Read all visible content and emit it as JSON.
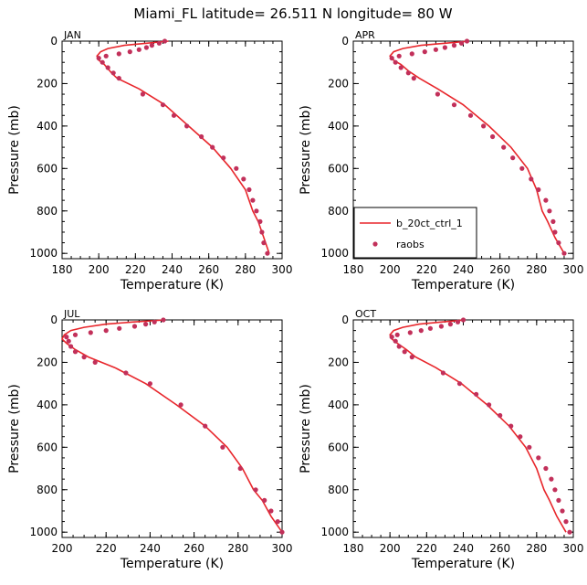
{
  "figure": {
    "title": "Miami_FL  latitude= 26.511 N longitude= 80 W"
  },
  "colors": {
    "model_line": "#e8262b",
    "obs_points": "#c2305a"
  },
  "chart_data": [
    {
      "type": "line",
      "panel": "JAN",
      "xlabel": "Temperature (K)",
      "ylabel": "Pressure (mb)",
      "xlim": [
        180,
        300
      ],
      "ylim": [
        0,
        1025
      ],
      "y_inverted": true,
      "x_ticks": [
        "180",
        "200",
        "220",
        "240",
        "260",
        "280",
        "300"
      ],
      "y_ticks": [
        "0",
        "200",
        "400",
        "600",
        "800",
        "1000"
      ],
      "legend": null,
      "series": [
        {
          "kind": "line",
          "x": [
            238,
            226,
            214,
            205,
            201,
            199,
            200,
            203,
            207,
            210,
            222,
            236,
            249,
            262,
            272,
            280,
            284,
            287,
            290,
            293
          ],
          "y": [
            0,
            10,
            20,
            35,
            50,
            70,
            90,
            110,
            150,
            175,
            225,
            300,
            400,
            500,
            600,
            700,
            800,
            850,
            925,
            1000
          ]
        },
        {
          "kind": "points",
          "x": [
            236,
            233,
            229,
            226,
            222,
            217,
            211,
            204,
            200,
            202,
            205,
            208,
            211,
            224,
            235,
            241,
            248,
            256,
            262,
            268,
            275,
            279,
            282,
            284,
            286,
            288,
            289,
            290,
            292
          ],
          "y": [
            0,
            10,
            20,
            30,
            40,
            50,
            60,
            70,
            80,
            100,
            125,
            150,
            175,
            250,
            300,
            350,
            400,
            450,
            500,
            550,
            600,
            650,
            700,
            750,
            800,
            850,
            900,
            950,
            1000
          ]
        }
      ]
    },
    {
      "type": "line",
      "panel": "APR",
      "xlabel": "Temperature (K)",
      "ylabel": "Pressure (mb)",
      "xlim": [
        180,
        300
      ],
      "ylim": [
        0,
        1025
      ],
      "y_inverted": true,
      "x_ticks": [
        "180",
        "200",
        "220",
        "240",
        "260",
        "280",
        "300"
      ],
      "y_ticks": [
        "0",
        "200",
        "400",
        "600",
        "800",
        "1000"
      ],
      "legend": {
        "placement": "bottom-left",
        "entries": [
          "b_20ct_ctrl_1",
          "raobs"
        ]
      },
      "series": [
        {
          "name": "b_20ct_ctrl_1",
          "kind": "line",
          "x": [
            243,
            230,
            217,
            207,
            202,
            200,
            202,
            206,
            210,
            216,
            226,
            240,
            254,
            266,
            275,
            280,
            283,
            286,
            290,
            295
          ],
          "y": [
            0,
            10,
            20,
            35,
            50,
            70,
            90,
            110,
            140,
            175,
            225,
            300,
            400,
            500,
            600,
            700,
            800,
            850,
            925,
            1000
          ]
        },
        {
          "name": "raobs",
          "kind": "points",
          "x": [
            242,
            239,
            235,
            230,
            225,
            219,
            212,
            205,
            201,
            203,
            206,
            210,
            213,
            226,
            235,
            244,
            251,
            256,
            262,
            267,
            272,
            277,
            281,
            285,
            287,
            289,
            290,
            292,
            295
          ],
          "y": [
            0,
            10,
            20,
            30,
            40,
            50,
            60,
            70,
            80,
            100,
            125,
            150,
            175,
            250,
            300,
            350,
            400,
            450,
            500,
            550,
            600,
            650,
            700,
            750,
            800,
            850,
            900,
            950,
            1000
          ]
        }
      ]
    },
    {
      "type": "line",
      "panel": "JUL",
      "xlabel": "Temperature (K)",
      "ylabel": "Pressure (mb)",
      "xlim": [
        200,
        300
      ],
      "ylim": [
        0,
        1025
      ],
      "y_inverted": true,
      "x_ticks": [
        "200",
        "220",
        "240",
        "260",
        "280",
        "300"
      ],
      "y_ticks": [
        "0",
        "200",
        "400",
        "600",
        "800",
        "1000"
      ],
      "legend": null,
      "series": [
        {
          "kind": "line",
          "x": [
            247,
            232,
            220,
            210,
            204,
            201,
            200,
            202,
            206,
            212,
            224,
            238,
            252,
            265,
            275,
            282,
            287,
            291,
            295,
            300
          ],
          "y": [
            0,
            10,
            20,
            35,
            50,
            70,
            90,
            110,
            140,
            175,
            225,
            300,
            400,
            500,
            600,
            700,
            800,
            850,
            925,
            1000
          ]
        },
        {
          "kind": "points",
          "x": [
            246,
            242,
            238,
            233,
            226,
            220,
            213,
            206,
            202,
            203,
            204,
            206,
            210,
            215,
            229,
            240,
            254,
            265,
            273,
            281,
            288,
            292,
            295,
            298,
            300
          ],
          "y": [
            0,
            10,
            20,
            30,
            40,
            50,
            60,
            70,
            80,
            100,
            125,
            150,
            175,
            200,
            250,
            300,
            400,
            500,
            600,
            700,
            800,
            850,
            900,
            950,
            1000
          ]
        }
      ]
    },
    {
      "type": "line",
      "panel": "OCT",
      "xlabel": "Temperature (K)",
      "ylabel": "Pressure (mb)",
      "xlim": [
        180,
        300
      ],
      "ylim": [
        0,
        1025
      ],
      "y_inverted": true,
      "x_ticks": [
        "180",
        "200",
        "220",
        "240",
        "260",
        "280",
        "300"
      ],
      "y_ticks": [
        "0",
        "200",
        "400",
        "600",
        "800",
        "1000"
      ],
      "legend": null,
      "series": [
        {
          "kind": "line",
          "x": [
            241,
            228,
            216,
            207,
            202,
            200,
            201,
            204,
            209,
            214,
            225,
            239,
            253,
            265,
            274,
            280,
            284,
            287,
            291,
            296
          ],
          "y": [
            0,
            10,
            20,
            35,
            50,
            70,
            90,
            110,
            140,
            175,
            225,
            300,
            400,
            500,
            600,
            700,
            800,
            850,
            925,
            1000
          ]
        },
        {
          "kind": "points",
          "x": [
            240,
            237,
            233,
            228,
            222,
            217,
            211,
            204,
            201,
            203,
            205,
            208,
            212,
            229,
            238,
            247,
            254,
            260,
            266,
            271,
            276,
            281,
            285,
            288,
            290,
            292,
            294,
            296,
            298
          ],
          "y": [
            0,
            10,
            20,
            30,
            40,
            50,
            60,
            70,
            80,
            100,
            125,
            150,
            175,
            250,
            300,
            350,
            400,
            450,
            500,
            550,
            600,
            650,
            700,
            750,
            800,
            850,
            900,
            950,
            1000
          ]
        }
      ]
    }
  ]
}
